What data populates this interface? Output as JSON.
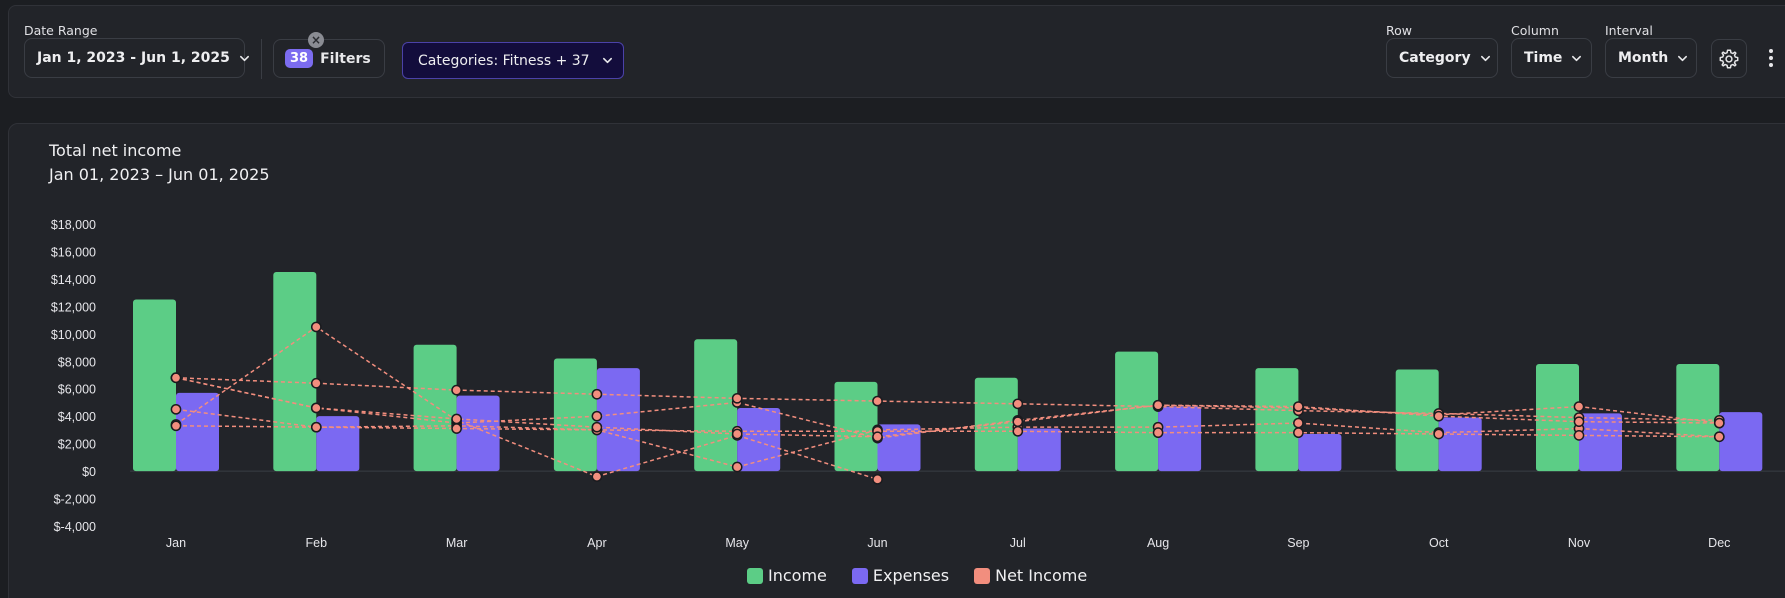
{
  "toolbar": {
    "date_range": {
      "label": "Date Range",
      "value": "Jan 1, 2023 - Jun 1, 2025"
    },
    "filters": {
      "count": "38",
      "label": "Filters",
      "clear_glyph": "×"
    },
    "categories": {
      "value": "Categories: Fitness + 37"
    },
    "row": {
      "label": "Row",
      "value": "Category"
    },
    "column": {
      "label": "Column",
      "value": "Time"
    },
    "interval": {
      "label": "Interval",
      "value": "Month"
    },
    "icons": {
      "settings": "gear-icon",
      "more": "more-vertical-icon",
      "chevron": "chevron-down-icon",
      "clear": "close-icon"
    }
  },
  "chart": {
    "title": "Total net income",
    "subtitle": "Jan 01, 2023 – Jun 01, 2025"
  },
  "legend": [
    {
      "label": "Income",
      "color": "#5ccd86"
    },
    {
      "label": "Expenses",
      "color": "#7b69f2"
    },
    {
      "label": "Net Income",
      "color": "#f28e7e"
    }
  ],
  "chart_data": {
    "type": "bar",
    "categories": [
      "Jan",
      "Feb",
      "Mar",
      "Apr",
      "May",
      "Jun",
      "Jul",
      "Aug",
      "Sep",
      "Oct",
      "Nov",
      "Dec"
    ],
    "ylim": [
      -4000,
      18000
    ],
    "yticks": [
      18000,
      16000,
      14000,
      12000,
      10000,
      8000,
      6000,
      4000,
      2000,
      0,
      -2000,
      -4000
    ],
    "ytick_labels": [
      "$18,000",
      "$16,000",
      "$14,000",
      "$12,000",
      "$10,000",
      "$8,000",
      "$6,000",
      "$4,000",
      "$2,000",
      "$0",
      "$-2,000",
      "$-4,000"
    ],
    "grid": false,
    "legend_position": "bottom-center",
    "bars": [
      {
        "name": "Income",
        "color": "#5ccd86",
        "values": [
          12500,
          14500,
          9200,
          8200,
          9600,
          6500,
          6800,
          8700,
          7500,
          7400,
          7800,
          7800
        ]
      },
      {
        "name": "Expenses",
        "color": "#7b69f2",
        "values": [
          5700,
          4000,
          5500,
          7500,
          4600,
          3400,
          3100,
          4700,
          2700,
          3900,
          4200,
          4300
        ]
      }
    ],
    "net_income_lines": {
      "name": "Net Income",
      "color": "#f28e7e",
      "style": "dashed",
      "series": [
        [
          6800,
          4600,
          3500,
          4000,
          5000,
          2400,
          3700,
          4800,
          4600,
          4100,
          4700,
          3500
        ],
        [
          4500,
          3200,
          3300,
          3000,
          300,
          3000,
          3200,
          3200,
          3500,
          2800,
          3100,
          2500
        ],
        [
          3400,
          10500,
          3700,
          -400,
          2600,
          -600,
          null,
          null,
          null,
          null,
          null,
          null
        ],
        [
          6800,
          6400,
          5900,
          5600,
          5300,
          5100,
          4900,
          4700,
          4400,
          4200,
          3900,
          3700
        ],
        [
          3300,
          3200,
          3100,
          3000,
          2900,
          2900,
          2900,
          2800,
          2800,
          2700,
          2600,
          2500
        ],
        [
          6800,
          4600,
          3800,
          3200,
          2700,
          2500,
          3600,
          4800,
          4700,
          4000,
          3600,
          3500
        ]
      ]
    }
  }
}
